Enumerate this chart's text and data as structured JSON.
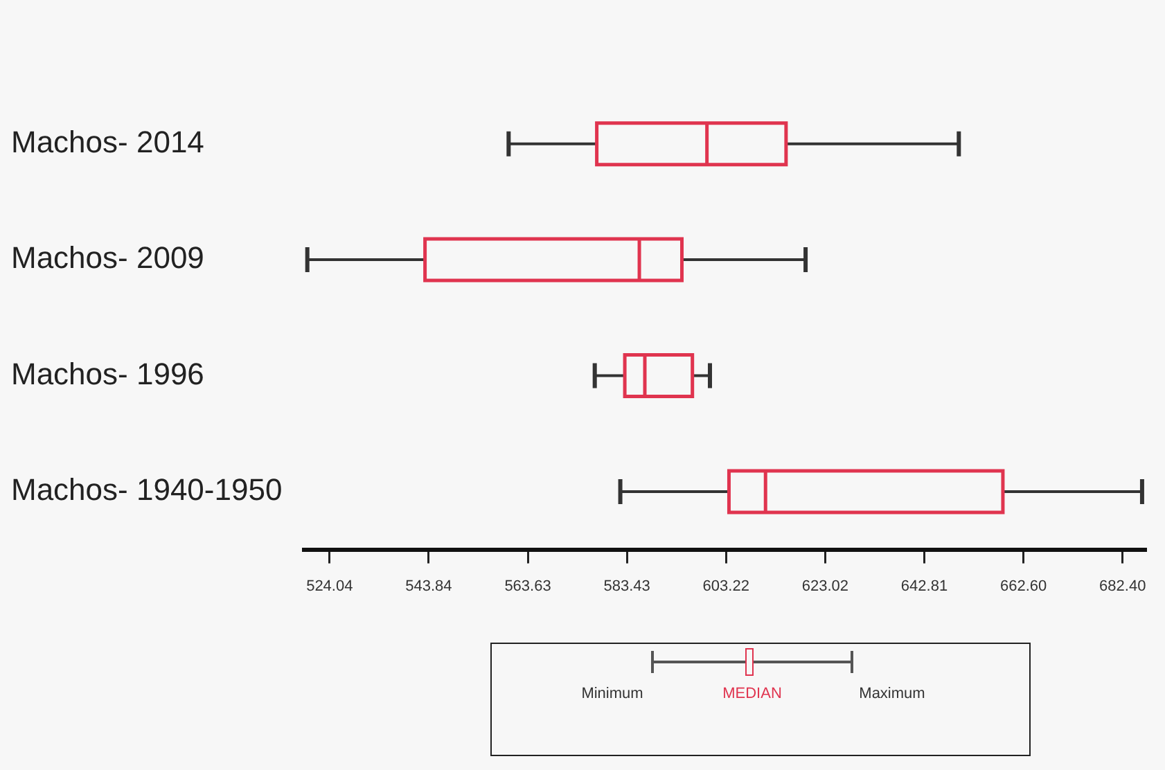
{
  "chart_data": {
    "type": "box",
    "orientation": "horizontal",
    "categories": [
      "Machos- 2014",
      "Machos- 2009",
      "Machos- 1996",
      "Machos- 1940-1950"
    ],
    "series": [
      {
        "color": "#e0344f",
        "boxes": [
          {
            "low": 559.8,
            "q1": 577.4,
            "median": 599.4,
            "q3": 615.2,
            "high": 649.7
          },
          {
            "low": 519.6,
            "q1": 543.1,
            "median": 585.9,
            "q3": 594.4,
            "high": 619.1
          },
          {
            "low": 577.0,
            "q1": 583.0,
            "median": 587.0,
            "q3": 596.5,
            "high": 600.0
          },
          {
            "low": 582.1,
            "q1": 603.8,
            "median": 611.1,
            "q3": 658.5,
            "high": 686.3
          }
        ]
      }
    ],
    "xlim": [
      519,
      687
    ],
    "xticks": [
      524.04,
      543.84,
      563.63,
      583.43,
      603.22,
      623.02,
      642.81,
      {
        "value": 662.6,
        "label": "662.60"
      },
      {
        "value": 682.4,
        "label": "682.40"
      }
    ],
    "annotations": [
      "Minimum",
      "MEDIAN",
      "Maximum"
    ]
  }
}
